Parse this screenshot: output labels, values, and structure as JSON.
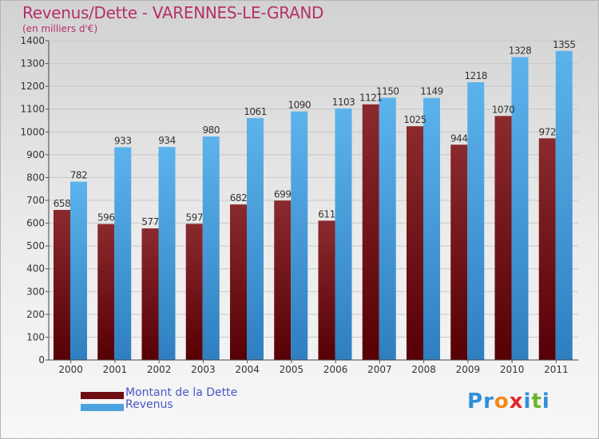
{
  "header": {
    "title": "Revenus/Dette - VARENNES-LE-GRAND",
    "subtitle": "(en milliers d'€)"
  },
  "legend": {
    "debt_label": "Montant de la Dette",
    "revenue_label": "Revenus"
  },
  "logo": {
    "letters": [
      "P",
      "r",
      "o",
      "x",
      "i",
      "t",
      "i"
    ]
  },
  "colors": {
    "debt": "#6e0e12",
    "revenue": "#4aa3e0",
    "title": "#b5306a",
    "legend_text": "#4a56c8",
    "logo": [
      "#2f8fd8",
      "#2f8fd8",
      "#f08a1c",
      "#e3262d",
      "#2f8fd8",
      "#6ab42d",
      "#2f8fd8"
    ]
  },
  "chart_data": {
    "type": "bar",
    "title": "Revenus/Dette - VARENNES-LE-GRAND",
    "ylabel": "(en milliers d'€)",
    "xlabel": "",
    "ylim": [
      0,
      1400
    ],
    "ytick_step": 100,
    "grid": true,
    "categories": [
      "2000",
      "2001",
      "2002",
      "2003",
      "2004",
      "2005",
      "2006",
      "2007",
      "2008",
      "2009",
      "2010",
      "2011"
    ],
    "series": [
      {
        "name": "Montant de la Dette",
        "values": [
          658,
          596,
          577,
          597,
          682,
          699,
          611,
          1121,
          1025,
          944,
          1070,
          972
        ]
      },
      {
        "name": "Revenus",
        "values": [
          782,
          933,
          934,
          980,
          1061,
          1090,
          1103,
          1150,
          1149,
          1218,
          1328,
          1355
        ]
      }
    ]
  }
}
